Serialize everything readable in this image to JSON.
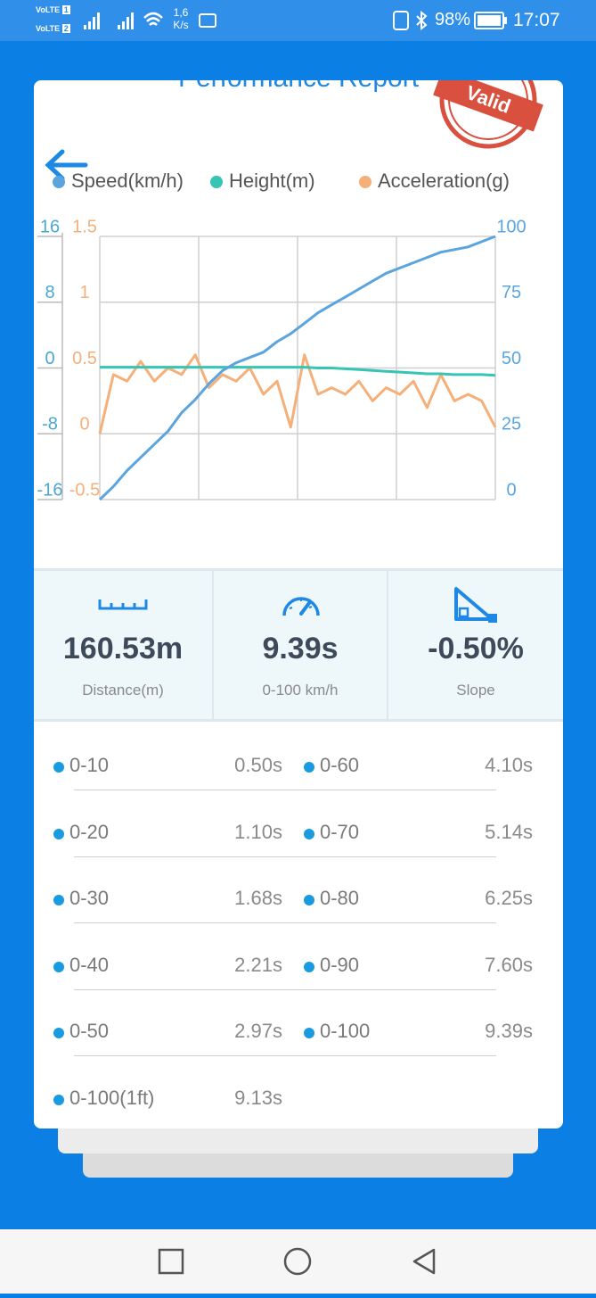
{
  "status_bar": {
    "sims": [
      {
        "label": "VoLTE",
        "slot": "1"
      },
      {
        "label": "VoLTE",
        "slot": "2"
      }
    ],
    "net_speed": "1,6",
    "net_unit": "K/s",
    "battery": "98%",
    "time": "17:07"
  },
  "header": {
    "title": "Performance Report",
    "stamp": "Valid"
  },
  "chart_data": {
    "type": "line",
    "categories": [
      null,
      null,
      null,
      null,
      null,
      null,
      null,
      null,
      null,
      null,
      null,
      null,
      null,
      null,
      null,
      null,
      null,
      null,
      null,
      null,
      null,
      null,
      null,
      null,
      null,
      null,
      null,
      null,
      null,
      null
    ],
    "series": [
      {
        "name": "Speed(km/h)",
        "color": "#5aa5e0",
        "axis": "y2",
        "values": [
          0,
          5,
          11,
          16,
          21,
          26,
          33,
          38,
          44,
          49,
          52,
          54,
          56,
          60,
          63,
          67,
          71,
          74,
          77,
          80,
          83,
          86,
          88,
          90,
          92,
          94,
          95,
          96,
          98,
          100
        ]
      },
      {
        "name": "Height(m)",
        "color": "#36c5b5",
        "axis": "y",
        "values": [
          0.1,
          0.1,
          0.1,
          0.1,
          0.1,
          0.1,
          0.1,
          0.1,
          0.1,
          0.1,
          0.1,
          0.1,
          0.1,
          0.1,
          0.1,
          0.1,
          0,
          0,
          -0.1,
          -0.2,
          -0.3,
          -0.4,
          -0.5,
          -0.6,
          -0.7,
          -0.7,
          -0.8,
          -0.8,
          -0.8,
          -0.9
        ]
      },
      {
        "name": "Acceleration(g)",
        "color": "#f5b07a",
        "axis": "y3",
        "values": [
          0,
          0.45,
          0.4,
          0.55,
          0.4,
          0.5,
          0.45,
          0.6,
          0.35,
          0.45,
          0.4,
          0.5,
          0.3,
          0.4,
          0.05,
          0.6,
          0.3,
          0.35,
          0.3,
          0.4,
          0.25,
          0.35,
          0.3,
          0.4,
          0.2,
          0.45,
          0.25,
          0.3,
          0.25,
          0.05
        ]
      }
    ],
    "ylim": [
      -16,
      16
    ],
    "yticks": [
      -16,
      -8,
      0,
      8,
      16
    ],
    "y2lim": [
      0,
      100
    ],
    "y2ticks": [
      0,
      25,
      50,
      75,
      100
    ],
    "y3lim": [
      -0.5,
      1.5
    ],
    "y3ticks": [
      -0.5,
      0,
      0.5,
      1,
      1.5
    ],
    "grid": true
  },
  "stats": [
    {
      "value": "160.53m",
      "caption": "Distance(m)"
    },
    {
      "value": "9.39s",
      "caption": "0-100 km/h"
    },
    {
      "value": "-0.50%",
      "caption": "Slope"
    }
  ],
  "splits": [
    [
      {
        "label": "0-10",
        "time": "0.50s"
      },
      {
        "label": "0-60",
        "time": "4.10s"
      }
    ],
    [
      {
        "label": "0-20",
        "time": "1.10s"
      },
      {
        "label": "0-70",
        "time": "5.14s"
      }
    ],
    [
      {
        "label": "0-30",
        "time": "1.68s"
      },
      {
        "label": "0-80",
        "time": "6.25s"
      }
    ],
    [
      {
        "label": "0-40",
        "time": "2.21s"
      },
      {
        "label": "0-90",
        "time": "7.60s"
      }
    ],
    [
      {
        "label": "0-50",
        "time": "2.97s"
      },
      {
        "label": "0-100",
        "time": "9.39s"
      }
    ],
    [
      {
        "label": "0-100(1ft)",
        "time": "9.13s"
      }
    ]
  ]
}
